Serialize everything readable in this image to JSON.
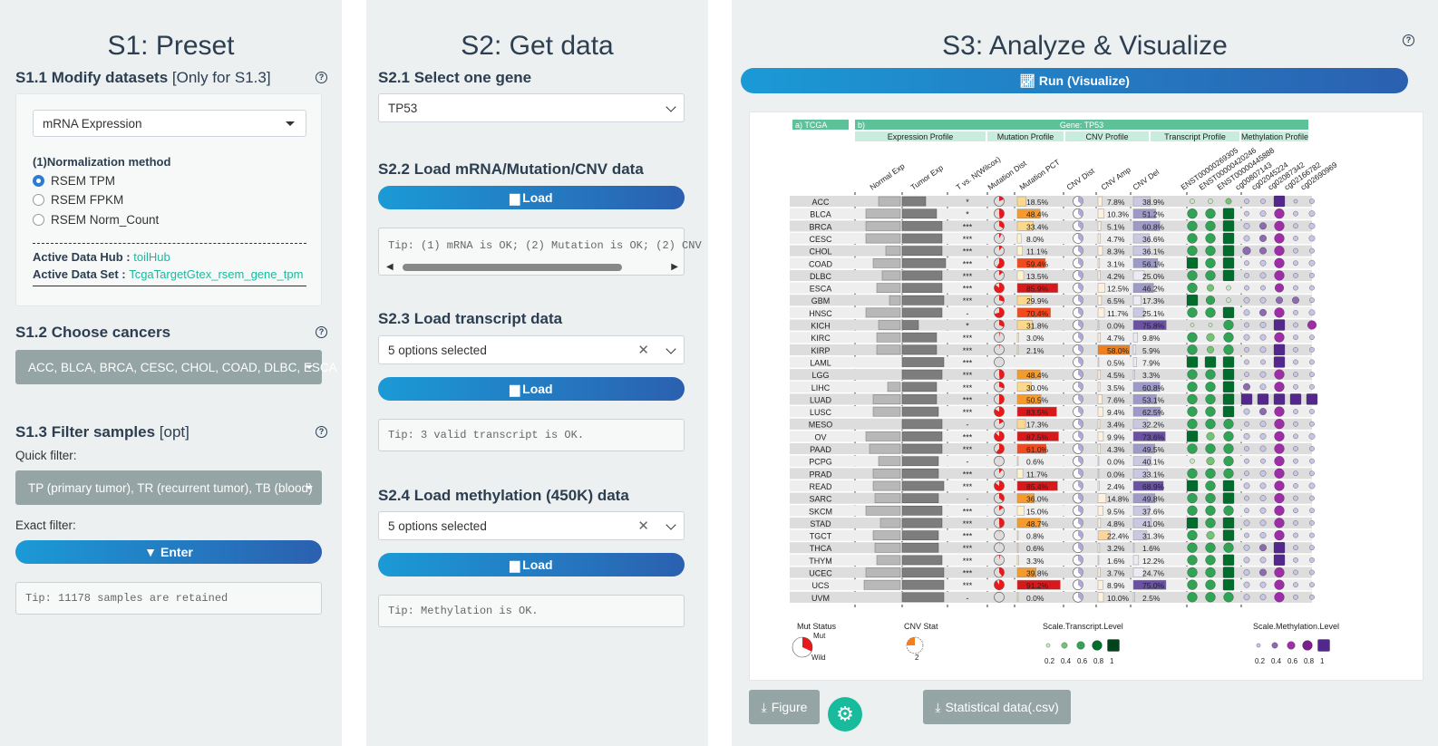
{
  "s1": {
    "title": "S1: Preset",
    "modify_title": "S1.1 Modify datasets",
    "modify_note": "[Only for S1.3]",
    "dataset_select": "mRNA Expression",
    "norm_label": "(1)Normalization method",
    "norm_options": [
      "RSEM TPM",
      "RSEM FPKM",
      "RSEM Norm_Count"
    ],
    "hub_label": "Active Data Hub : ",
    "hub_value": "toilHub",
    "set_label": "Active Data Set : ",
    "set_value": "TcgaTargetGtex_rsem_gene_tpm",
    "cancer_title": "S1.2 Choose cancers",
    "cancer_value": "ACC, BLCA, BRCA, CESC, CHOL, COAD, DLBC, ESCA",
    "filter_title": "S1.3 Filter samples",
    "filter_note": "[opt]",
    "quick_label": "Quick filter:",
    "quick_value": "TP (primary tumor), TR (recurrent tumor), TB (blood)",
    "exact_label": "Exact filter:",
    "enter_label": "Enter",
    "tip": "Tip: 11178 samples are retained"
  },
  "s2": {
    "title": "S2: Get data",
    "gene_title": "S2.1 Select one gene",
    "gene_value": "TP53",
    "load1_title": "S2.2 Load mRNA/Mutation/CNV data",
    "load_label": "Load",
    "tip1": "Tip: (1) mRNA is OK; (2) Mutation is OK; (2) CNV",
    "load2_title": "S2.3 Load transcript data",
    "transcript_value": "5 options selected",
    "tip2": "Tip: 3 valid transcript is OK.",
    "load3_title": "S2.4 Load methylation (450K) data",
    "meth_value": "5 options selected",
    "tip3": "Tip: Methylation is OK."
  },
  "s3": {
    "title": "S3: Analyze & Visualize",
    "run_label": "Run (Visualize)",
    "figure_label": "Figure",
    "stat_label": "Statistical data(.csv)"
  },
  "figure": {
    "panel_a": "a) TCGA",
    "panel_b": "b)",
    "gene_title": "Gene: TP53",
    "groups": [
      "Expression Profile",
      "Mutation Profile",
      "CNV Profile",
      "Transcript Profile",
      "Methylation Profile"
    ],
    "col_headers": [
      "Normal Exp",
      "Tumor Exp",
      "T vs. N(Wilcox)",
      "Mutation Dist",
      "Mutation PCT",
      "CNV Dist",
      "CNV Amp",
      "CNV Del",
      "ENST00000269305",
      "ENST00000420246",
      "ENST00000445888",
      "cg00807143",
      "cg02045224",
      "cg02087342",
      "cg02166782",
      "cg02690969"
    ],
    "legend_mut": "Mut Status",
    "legend_mut_items": [
      "Mut",
      "Wild"
    ],
    "legend_cnv": "CNV Stat",
    "legend_cnv_num": "2",
    "legend_tr": "Scale.Transcript.Level",
    "legend_me": "Scale.Methylation.Level",
    "legend_ticks": [
      "0.2",
      "0.4",
      "0.6",
      "0.8",
      "1"
    ],
    "rows": [
      {
        "c": "ACC",
        "ne": 24,
        "te": 26,
        "sig": "*",
        "mp": 18.5,
        "ml": "18.5%",
        "ca": 7.8,
        "cal": "7.8%",
        "cd": 38.9,
        "cdl": "38.9%",
        "tr": [
          0.3,
          0.3,
          0.4
        ],
        "me": [
          0.3,
          0.3,
          0.9,
          0.2,
          0.3
        ]
      },
      {
        "c": "BLCA",
        "ne": 38,
        "te": 38,
        "sig": "*",
        "mp": 48.4,
        "ml": "48.4%",
        "ca": 10.3,
        "cal": "10.3%",
        "cd": 51.2,
        "cdl": "51.2%",
        "tr": [
          0.8,
          0.8,
          0.9
        ],
        "me": [
          0.3,
          0.4,
          0.8,
          0.3,
          0.4
        ]
      },
      {
        "c": "BRCA",
        "ne": 38,
        "te": 44,
        "sig": "***",
        "mp": 33.4,
        "ml": "33.4%",
        "ca": 5.1,
        "cal": "5.1%",
        "cd": 60.8,
        "cdl": "60.8%",
        "tr": [
          0.8,
          0.8,
          0.9
        ],
        "me": [
          0.4,
          0.5,
          0.8,
          0.3,
          0.4
        ]
      },
      {
        "c": "CESC",
        "ne": 38,
        "te": 44,
        "sig": "***",
        "mp": 8.0,
        "ml": "8.0%",
        "ca": 4.7,
        "cal": "4.7%",
        "cd": 36.6,
        "cdl": "36.6%",
        "tr": [
          0.8,
          0.8,
          0.9
        ],
        "me": [
          0.4,
          0.5,
          0.8,
          0.3,
          0.4
        ]
      },
      {
        "c": "CHOL",
        "ne": 16,
        "te": 44,
        "sig": "***",
        "mp": 11.1,
        "ml": "11.1%",
        "ca": 8.3,
        "cal": "8.3%",
        "cd": 36.1,
        "cdl": "36.1%",
        "tr": [
          0.8,
          0.8,
          0.9
        ],
        "me": [
          0.6,
          0.5,
          0.8,
          0.3,
          0.3
        ]
      },
      {
        "c": "COAD",
        "ne": 30,
        "te": 48,
        "sig": "***",
        "mp": 59.4,
        "ml": "59.4%",
        "ca": 3.1,
        "cal": "3.1%",
        "cd": 56.1,
        "cdl": "56.1%",
        "tr": [
          0.9,
          0.8,
          0.9
        ],
        "me": [
          0.3,
          0.4,
          0.8,
          0.3,
          0.4
        ]
      },
      {
        "c": "DLBC",
        "ne": 20,
        "te": 44,
        "sig": "***",
        "mp": 13.5,
        "ml": "13.5%",
        "ca": 4.2,
        "cal": "4.2%",
        "cd": 25.0,
        "cdl": "25.0%",
        "tr": [
          0.8,
          0.8,
          0.9
        ],
        "me": [
          0.3,
          0.4,
          0.8,
          0.3,
          0.3
        ]
      },
      {
        "c": "ESCA",
        "ne": 26,
        "te": 44,
        "sig": "***",
        "mp": 85.9,
        "ml": "85.9%",
        "ca": 12.5,
        "cal": "12.5%",
        "cd": 46.2,
        "cdl": "46.2%",
        "tr": [
          0.8,
          0.5,
          0.3
        ],
        "me": [
          0.3,
          0.3,
          0.7,
          0.3,
          0.3
        ]
      },
      {
        "c": "GBM",
        "ne": 12,
        "te": 46,
        "sig": "***",
        "mp": 29.9,
        "ml": "29.9%",
        "ca": 6.5,
        "cal": "6.5%",
        "cd": 17.3,
        "cdl": "17.3%",
        "tr": [
          0.9,
          0.7,
          0.3
        ],
        "me": [
          0.4,
          0.4,
          0.5,
          0.5,
          0.3
        ]
      },
      {
        "c": "HNSC",
        "ne": 38,
        "te": 44,
        "sig": "-",
        "mp": 70.4,
        "ml": "70.4%",
        "ca": 11.7,
        "cal": "11.7%",
        "cd": 25.1,
        "cdl": "25.1%",
        "tr": [
          0.8,
          0.8,
          0.9
        ],
        "me": [
          0.4,
          0.5,
          0.8,
          0.3,
          0.4
        ]
      },
      {
        "c": "KICH",
        "ne": 24,
        "te": 18,
        "sig": "*",
        "mp": 31.8,
        "ml": "31.8%",
        "ca": 0.0,
        "cal": "0.0%",
        "cd": 75.8,
        "cdl": "75.8%",
        "tr": [
          0.2,
          0.2,
          0.8
        ],
        "me": [
          0.3,
          0.4,
          0.9,
          0.3,
          0.7
        ]
      },
      {
        "c": "KIRC",
        "ne": 26,
        "te": 38,
        "sig": "***",
        "mp": 3.0,
        "ml": "3.0%",
        "ca": 4.7,
        "cal": "4.7%",
        "cd": 9.8,
        "cdl": "9.8%",
        "tr": [
          0.8,
          0.6,
          0.8
        ],
        "me": [
          0.4,
          0.4,
          0.8,
          0.3,
          0.3
        ]
      },
      {
        "c": "KIRP",
        "ne": 26,
        "te": 38,
        "sig": "***",
        "mp": 2.1,
        "ml": "2.1%",
        "ca": 58.0,
        "cal": "58.0%",
        "cd": 5.9,
        "cdl": "5.9%",
        "tr": [
          0.8,
          0.5,
          0.8
        ],
        "me": [
          0.3,
          0.4,
          0.9,
          0.3,
          0.3
        ]
      },
      {
        "c": "LAML",
        "ne": 0,
        "te": 46,
        "sig": "***",
        "mp": 0,
        "ml": "",
        "ca": 0.5,
        "cal": "0.5%",
        "cd": 7.9,
        "cdl": "7.9%",
        "tr": [
          0.9,
          0.9,
          0.9
        ],
        "me": [
          0.3,
          0.3,
          0.9,
          0.3,
          0.3
        ]
      },
      {
        "c": "LGG",
        "ne": 0,
        "te": 44,
        "sig": "***",
        "mp": 48.4,
        "ml": "48.4%",
        "ca": 4.5,
        "cal": "4.5%",
        "cd": 3.3,
        "cdl": "3.3%",
        "tr": [
          0.8,
          0.8,
          0.9
        ],
        "me": [
          0.3,
          0.4,
          0.8,
          0.3,
          0.3
        ]
      },
      {
        "c": "LIHC",
        "ne": 14,
        "te": 38,
        "sig": "***",
        "mp": 30.0,
        "ml": "30.0%",
        "ca": 3.5,
        "cal": "3.5%",
        "cd": 60.8,
        "cdl": "60.8%",
        "tr": [
          0.8,
          0.8,
          0.9
        ],
        "me": [
          0.5,
          0.4,
          0.8,
          0.3,
          0.3
        ]
      },
      {
        "c": "LUAD",
        "ne": 30,
        "te": 38,
        "sig": "***",
        "mp": 50.5,
        "ml": "50.5%",
        "ca": 7.6,
        "cal": "7.6%",
        "cd": 53.1,
        "cdl": "53.1%",
        "tr": [
          0.8,
          0.8,
          0.9
        ],
        "me": [
          0.9,
          0.9,
          0.9,
          0.9,
          0.9
        ]
      },
      {
        "c": "LUSC",
        "ne": 30,
        "te": 40,
        "sig": "***",
        "mp": 83.5,
        "ml": "83.5%",
        "ca": 9.4,
        "cal": "9.4%",
        "cd": 62.5,
        "cdl": "62.5%",
        "tr": [
          0.8,
          0.8,
          0.9
        ],
        "me": [
          0.4,
          0.5,
          0.8,
          0.3,
          0.3
        ]
      },
      {
        "c": "MESO",
        "ne": 0,
        "te": 44,
        "sig": "-",
        "mp": 17.3,
        "ml": "17.3%",
        "ca": 3.4,
        "cal": "3.4%",
        "cd": 32.2,
        "cdl": "32.2%",
        "tr": [
          0.8,
          0.8,
          0.8
        ],
        "me": [
          0.3,
          0.4,
          0.8,
          0.3,
          0.3
        ]
      },
      {
        "c": "OV",
        "ne": 38,
        "te": 44,
        "sig": "***",
        "mp": 87.5,
        "ml": "87.5%",
        "ca": 9.9,
        "cal": "9.9%",
        "cd": 73.6,
        "cdl": "73.6%",
        "tr": [
          0.9,
          0.6,
          0.8
        ],
        "me": [
          0.4,
          0.4,
          0.8,
          0.3,
          0.4
        ]
      },
      {
        "c": "PAAD",
        "ne": 34,
        "te": 44,
        "sig": "***",
        "mp": 61.0,
        "ml": "61.0%",
        "ca": 4.3,
        "cal": "4.3%",
        "cd": 49.5,
        "cdl": "49.5%",
        "tr": [
          0.8,
          0.8,
          0.8
        ],
        "me": [
          0.3,
          0.4,
          0.8,
          0.3,
          0.3
        ]
      },
      {
        "c": "PCPG",
        "ne": 24,
        "te": 40,
        "sig": "-",
        "mp": 0.6,
        "ml": "0.6%",
        "ca": 0.0,
        "cal": "0.0%",
        "cd": 40.1,
        "cdl": "40.1%",
        "tr": [
          0.3,
          0.6,
          0.8
        ],
        "me": [
          0.3,
          0.3,
          0.8,
          0.3,
          0.3
        ]
      },
      {
        "c": "PRAD",
        "ne": 30,
        "te": 40,
        "sig": "***",
        "mp": 11.7,
        "ml": "11.7%",
        "ca": 0.0,
        "cal": "0.0%",
        "cd": 33.1,
        "cdl": "33.1%",
        "tr": [
          0.8,
          0.8,
          0.8
        ],
        "me": [
          0.3,
          0.4,
          0.8,
          0.3,
          0.3
        ]
      },
      {
        "c": "READ",
        "ne": 30,
        "te": 46,
        "sig": "***",
        "mp": 85.4,
        "ml": "85.4%",
        "ca": 2.4,
        "cal": "2.4%",
        "cd": 68.9,
        "cdl": "68.9%",
        "tr": [
          0.9,
          0.8,
          0.9
        ],
        "me": [
          0.4,
          0.4,
          0.8,
          0.3,
          0.4
        ]
      },
      {
        "c": "SARC",
        "ne": 28,
        "te": 40,
        "sig": "-",
        "mp": 36.0,
        "ml": "36.0%",
        "ca": 14.8,
        "cal": "14.8%",
        "cd": 49.8,
        "cdl": "49.8%",
        "tr": [
          0.8,
          0.8,
          0.9
        ],
        "me": [
          0.3,
          0.4,
          0.8,
          0.3,
          0.3
        ]
      },
      {
        "c": "SKCM",
        "ne": 38,
        "te": 44,
        "sig": "***",
        "mp": 15.0,
        "ml": "15.0%",
        "ca": 9.5,
        "cal": "9.5%",
        "cd": 37.6,
        "cdl": "37.6%",
        "tr": [
          0.8,
          0.8,
          0.8
        ],
        "me": [
          0.3,
          0.4,
          0.8,
          0.3,
          0.3
        ]
      },
      {
        "c": "STAD",
        "ne": 22,
        "te": 44,
        "sig": "***",
        "mp": 48.7,
        "ml": "48.7%",
        "ca": 4.8,
        "cal": "4.8%",
        "cd": 41.0,
        "cdl": "41.0%",
        "tr": [
          0.9,
          0.8,
          0.9
        ],
        "me": [
          0.4,
          0.4,
          0.8,
          0.3,
          0.3
        ]
      },
      {
        "c": "TGCT",
        "ne": 30,
        "te": 40,
        "sig": "***",
        "mp": 0.8,
        "ml": "0.8%",
        "ca": 22.4,
        "cal": "22.4%",
        "cd": 31.3,
        "cdl": "31.3%",
        "tr": [
          0.8,
          0.6,
          0.9
        ],
        "me": [
          0.3,
          0.4,
          0.8,
          0.3,
          0.3
        ]
      },
      {
        "c": "THCA",
        "ne": 28,
        "te": 40,
        "sig": "***",
        "mp": 0.6,
        "ml": "0.6%",
        "ca": 3.2,
        "cal": "3.2%",
        "cd": 1.6,
        "cdl": "1.6%",
        "tr": [
          0.8,
          0.8,
          0.8
        ],
        "me": [
          0.4,
          0.5,
          0.9,
          0.3,
          0.3
        ]
      },
      {
        "c": "THYM",
        "ne": 26,
        "te": 44,
        "sig": "***",
        "mp": 3.3,
        "ml": "3.3%",
        "ca": 1.6,
        "cal": "1.6%",
        "cd": 12.2,
        "cdl": "12.2%",
        "tr": [
          0.8,
          0.8,
          0.9
        ],
        "me": [
          0.4,
          0.4,
          0.9,
          0.3,
          0.3
        ]
      },
      {
        "c": "UCEC",
        "ne": 38,
        "te": 46,
        "sig": "***",
        "mp": 39.8,
        "ml": "39.8%",
        "ca": 3.7,
        "cal": "3.7%",
        "cd": 24.7,
        "cdl": "24.7%",
        "tr": [
          0.8,
          0.8,
          0.9
        ],
        "me": [
          0.4,
          0.5,
          0.8,
          0.3,
          0.3
        ]
      },
      {
        "c": "UCS",
        "ne": 40,
        "te": 46,
        "sig": "***",
        "mp": 91.2,
        "ml": "91.2%",
        "ca": 8.9,
        "cal": "8.9%",
        "cd": 75.0,
        "cdl": "75.0%",
        "tr": [
          0.8,
          0.8,
          0.9
        ],
        "me": [
          0.4,
          0.4,
          0.8,
          0.3,
          0.3
        ]
      },
      {
        "c": "UVM",
        "ne": 0,
        "te": 46,
        "sig": "-",
        "mp": 0.0,
        "ml": "0.0%",
        "ca": 10.0,
        "cal": "10.0%",
        "cd": 2.5,
        "cdl": "2.5%",
        "tr": [
          0.8,
          0.8,
          0.8
        ],
        "me": [
          0.4,
          0.4,
          0.8,
          0.3,
          0.3
        ]
      }
    ]
  }
}
